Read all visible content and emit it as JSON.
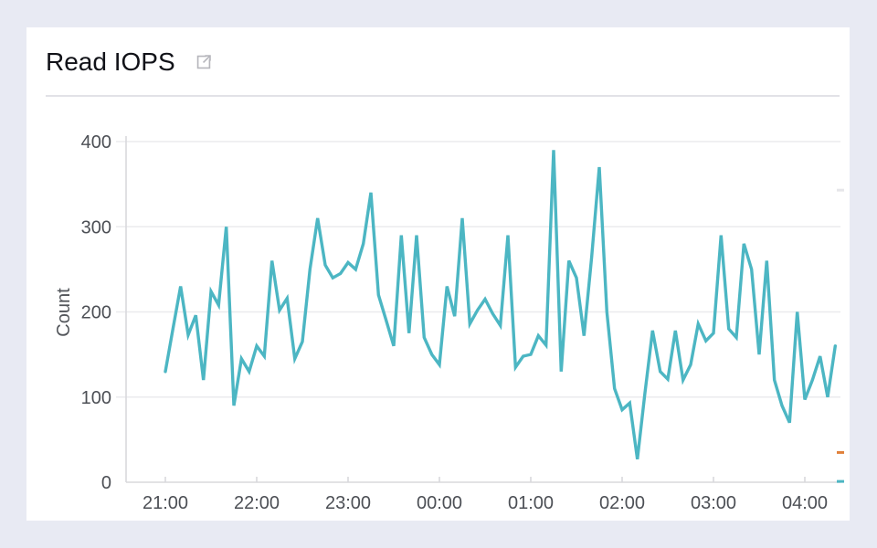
{
  "page": {
    "background_color": "#e8eaf3",
    "card_background": "#ffffff"
  },
  "header": {
    "title": "Read IOPS",
    "external_link_icon": "open-chart-in-new-window"
  },
  "chart_data": {
    "type": "line",
    "title": "Read IOPS",
    "xlabel": "",
    "ylabel": "Count",
    "ylim": [
      0,
      400
    ],
    "y_ticks": [
      0,
      100,
      200,
      300,
      400
    ],
    "x_ticks": [
      "21:00",
      "22:00",
      "23:00",
      "00:00",
      "01:00",
      "02:00",
      "03:00",
      "04:00"
    ],
    "grid": "horizontal",
    "legend": "none",
    "line_color": "#4cb6c3",
    "grid_color": "#ebebee",
    "axis_color": "#d8d8dc",
    "tick_text_color": "#4c4f55",
    "start_time": "21:00",
    "end_time": "04:20",
    "interval_minutes": 5,
    "values": [
      130,
      180,
      230,
      173,
      196,
      120,
      224,
      208,
      300,
      90,
      145,
      130,
      160,
      148,
      260,
      202,
      216,
      145,
      165,
      250,
      310,
      255,
      240,
      245,
      258,
      250,
      280,
      340,
      220,
      190,
      160,
      290,
      175,
      290,
      170,
      150,
      138,
      230,
      195,
      310,
      186,
      202,
      215,
      198,
      184,
      290,
      135,
      148,
      150,
      172,
      161,
      390,
      130,
      260,
      240,
      172,
      265,
      370,
      200,
      110,
      85,
      93,
      27,
      105,
      178,
      130,
      121,
      178,
      120,
      138,
      186,
      166,
      175,
      290,
      180,
      170,
      280,
      250,
      150,
      260,
      120,
      90,
      70,
      200,
      97,
      120,
      148,
      100,
      160
    ],
    "partial_series_marks": [
      {
        "name": "orange-series-fragment",
        "color": "#e0813a",
        "value": 35
      },
      {
        "name": "teal-series-fragment",
        "color": "#4cb6c3",
        "value": 1
      },
      {
        "name": "faint-series-fragment",
        "color": "#e6e6ea",
        "value": 343
      }
    ]
  }
}
